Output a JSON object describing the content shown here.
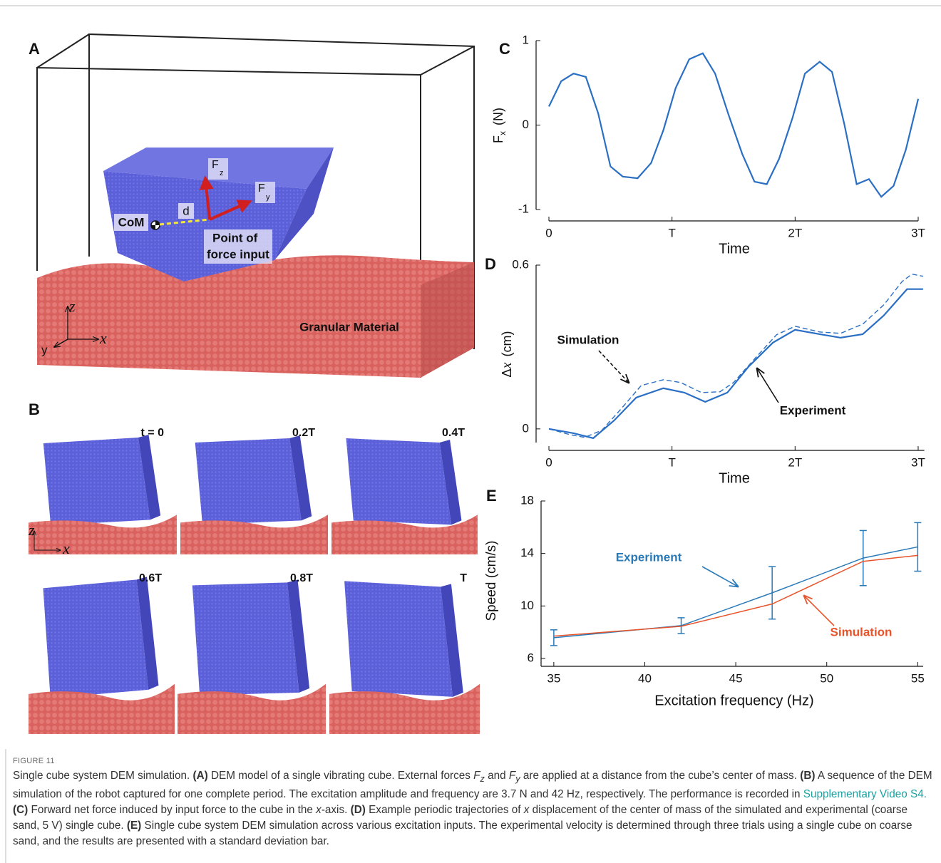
{
  "panels": {
    "A": {
      "label": "A",
      "com": "CoM",
      "d": "d",
      "fz": [
        "F",
        "z"
      ],
      "fy": [
        "F",
        "y"
      ],
      "point": [
        "Point of",
        "force input"
      ],
      "material": "Granular Material",
      "axes": [
        "z",
        "x",
        "y"
      ]
    },
    "B": {
      "label": "B",
      "frames": [
        "t = 0",
        "0.2T",
        "0.4T",
        "0.6T",
        "0.8T",
        "T"
      ],
      "axes": [
        "z",
        "x"
      ]
    }
  },
  "chart_data": [
    {
      "type": "line",
      "label": "C",
      "xlabel": "Time",
      "ylabel": [
        "F",
        "x",
        "(N)"
      ],
      "xlim": [
        0,
        3
      ],
      "ylim": [
        -1,
        1
      ],
      "xticks": [
        0,
        {
          "value": 1,
          "label": "T"
        },
        {
          "value": 2,
          "label": "2T"
        },
        {
          "value": 3,
          "label": "3T"
        }
      ],
      "yticks": [
        -1,
        0,
        1
      ],
      "series": [
        {
          "color": "#2a6fc4",
          "x": [
            0,
            0.1,
            0.2,
            0.3,
            0.4,
            0.5,
            0.6,
            0.72,
            0.83,
            0.93,
            1.03,
            1.14,
            1.25,
            1.35,
            1.46,
            1.57,
            1.67,
            1.77,
            1.87,
            1.98,
            2.08,
            2.2,
            2.3,
            2.4,
            2.5,
            2.6,
            2.7,
            2.8,
            2.9,
            3.0
          ],
          "values": [
            0.22,
            0.52,
            0.61,
            0.57,
            0.14,
            -0.49,
            -0.61,
            -0.63,
            -0.45,
            -0.06,
            0.44,
            0.78,
            0.85,
            0.61,
            0.12,
            -0.34,
            -0.67,
            -0.7,
            -0.4,
            0.09,
            0.61,
            0.75,
            0.63,
            0.01,
            -0.7,
            -0.64,
            -0.85,
            -0.72,
            -0.29,
            0.31
          ]
        }
      ]
    },
    {
      "type": "line",
      "label": "D",
      "xlabel": "Time",
      "ylabel": [
        "Δ",
        "x",
        "(cm)"
      ],
      "xlim": [
        0,
        3.05
      ],
      "ylim": [
        -0.05,
        0.6
      ],
      "xticks": [
        0,
        {
          "value": 1,
          "label": "T"
        },
        {
          "value": 2,
          "label": "2T"
        },
        {
          "value": 3,
          "label": "3T"
        }
      ],
      "yticks": [
        0,
        0.6
      ],
      "series": [
        {
          "name": "Experiment",
          "color": "#2a6fc4",
          "dashed": false,
          "x": [
            0,
            0.2,
            0.36,
            0.53,
            0.71,
            0.93,
            1.1,
            1.27,
            1.45,
            1.62,
            1.82,
            2.0,
            2.2,
            2.37,
            2.55,
            2.72,
            2.91,
            3.04
          ],
          "values": [
            0,
            -0.016,
            -0.034,
            0.031,
            0.115,
            0.149,
            0.133,
            0.099,
            0.133,
            0.227,
            0.316,
            0.363,
            0.347,
            0.334,
            0.347,
            0.415,
            0.512,
            0.512
          ]
        },
        {
          "name": "Simulation",
          "color": "#2a6fc4",
          "dashed": true,
          "x": [
            0,
            0.17,
            0.29,
            0.43,
            0.58,
            0.75,
            0.93,
            1.07,
            1.24,
            1.39,
            1.5,
            1.68,
            1.85,
            2.0,
            2.2,
            2.37,
            2.55,
            2.72,
            2.87,
            2.95,
            3.04
          ],
          "values": [
            0,
            -0.021,
            -0.031,
            -0.005,
            0.07,
            0.159,
            0.18,
            0.17,
            0.133,
            0.136,
            0.17,
            0.261,
            0.345,
            0.376,
            0.355,
            0.35,
            0.384,
            0.454,
            0.54,
            0.567,
            0.559
          ]
        }
      ]
    },
    {
      "type": "line",
      "label": "E",
      "xlabel": "Excitation frequency (Hz)",
      "ylabel": "Speed (cm/s)",
      "xlim": [
        34.3,
        55.3
      ],
      "ylim": [
        5.4,
        18
      ],
      "xticks": [
        35,
        40,
        45,
        50,
        55
      ],
      "yticks": [
        6,
        10,
        14,
        18
      ],
      "series": [
        {
          "name": "Experiment",
          "color": "#2a7ab8",
          "x": [
            35,
            42,
            47,
            52,
            55
          ],
          "values": [
            7.58,
            8.5,
            11.0,
            13.65,
            14.5
          ],
          "errors": [
            0.6,
            0.6,
            2.0,
            2.1,
            1.85
          ]
        },
        {
          "name": "Simulation",
          "color": "#e8542a",
          "x": [
            35,
            42,
            47,
            52,
            55
          ],
          "values": [
            7.7,
            8.45,
            10.15,
            13.4,
            13.85
          ]
        }
      ]
    }
  ],
  "caption": {
    "figure": "FIGURE 11",
    "parts": [
      "Single cube system DEM simulation. ",
      "(A)",
      " DEM model of a single vibrating cube. External forces ",
      "F",
      "z",
      " and ",
      "F",
      "y",
      " are applied at a distance from the cube’s center of mass. ",
      "(B)",
      " A sequence of the DEM simulation of the robot captured for one complete period. The excitation amplitude and frequency are 3.7 N and 42 Hz, respectively. The performance is recorded in ",
      "Supplementary Video S4.",
      " (C)",
      " Forward net force induced by input force to the cube in the ",
      "x",
      "-axis. ",
      "(D)",
      " Example periodic trajectories of ",
      "x",
      " displacement of the center of mass of the simulated and experimental (coarse sand, 5 V) single cube. ",
      "(E)",
      " Single cube system DEM simulation across various excitation inputs. The experimental velocity is determined through three trials using a single cube on coarse sand, and the results are presented with a standard deviation bar."
    ]
  }
}
